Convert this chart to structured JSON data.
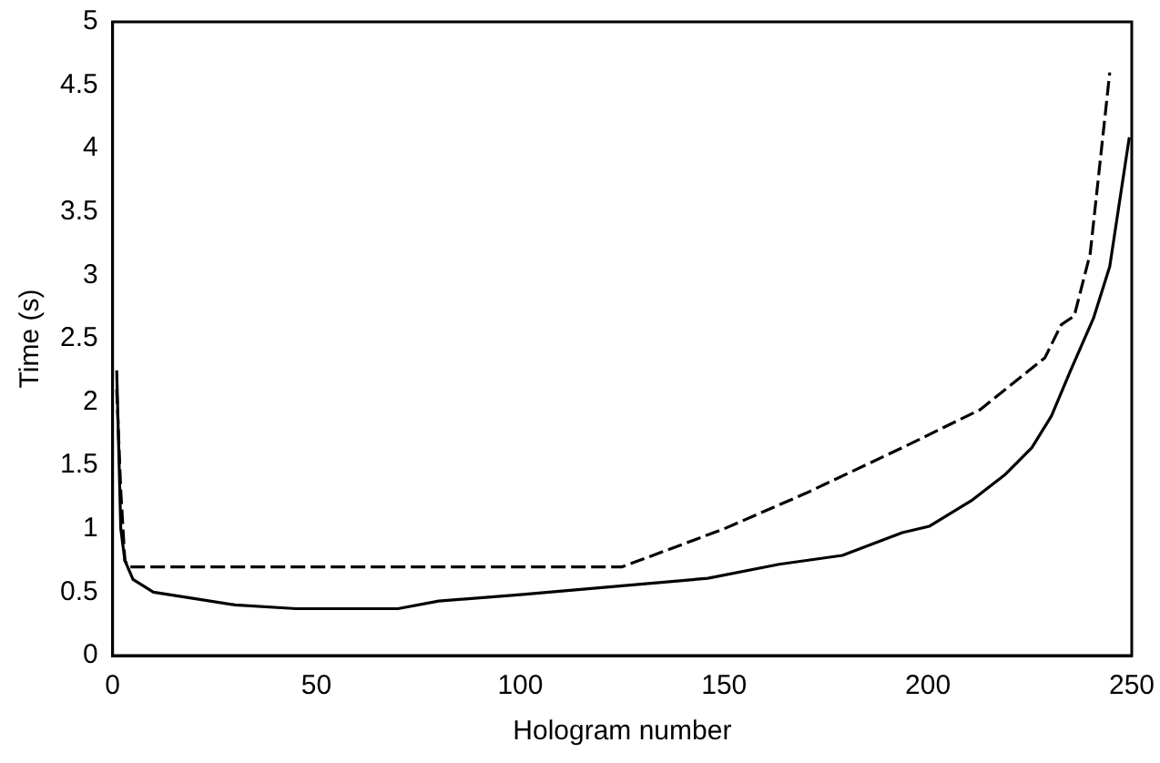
{
  "chart_data": {
    "type": "line",
    "xlabel": "Hologram number",
    "ylabel": "Time (s)",
    "xlim": [
      0,
      250
    ],
    "xticks": [
      0,
      50,
      100,
      150,
      200,
      250
    ],
    "ylim": [
      0,
      5
    ],
    "yticks": [
      0,
      0.5,
      1,
      1.5,
      2,
      2.5,
      3,
      3.5,
      4,
      4.5,
      5
    ],
    "grid": false,
    "legend": false,
    "marker": "none",
    "series": [
      {
        "color": "#000000",
        "line_style": "solid",
        "x": [
          1,
          2,
          3,
          5,
          10,
          20,
          30,
          45,
          70,
          80,
          100,
          125,
          146,
          163.5,
          179,
          193.7,
          200.3,
          211,
          219,
          225.5,
          230.3,
          235,
          240.6,
          244.6,
          249.4
        ],
        "values": [
          2.25,
          1.0,
          0.75,
          0.6,
          0.5,
          0.45,
          0.4,
          0.37,
          0.37,
          0.43,
          0.48,
          0.55,
          0.61,
          0.72,
          0.79,
          0.97,
          1.02,
          1.23,
          1.43,
          1.64,
          1.89,
          2.25,
          2.66,
          3.07,
          4.09
        ]
      },
      {
        "color": "#000000",
        "line_style": "dashed",
        "x": [
          1,
          2,
          3,
          4,
          60,
          125,
          150,
          170,
          193.7,
          212.8,
          228.7,
          232.7,
          235.9,
          239.8,
          244.6
        ],
        "values": [
          2.1,
          1.3,
          0.75,
          0.7,
          0.7,
          0.7,
          1.0,
          1.28,
          1.64,
          1.94,
          2.35,
          2.61,
          2.68,
          3.17,
          4.6
        ]
      }
    ]
  }
}
